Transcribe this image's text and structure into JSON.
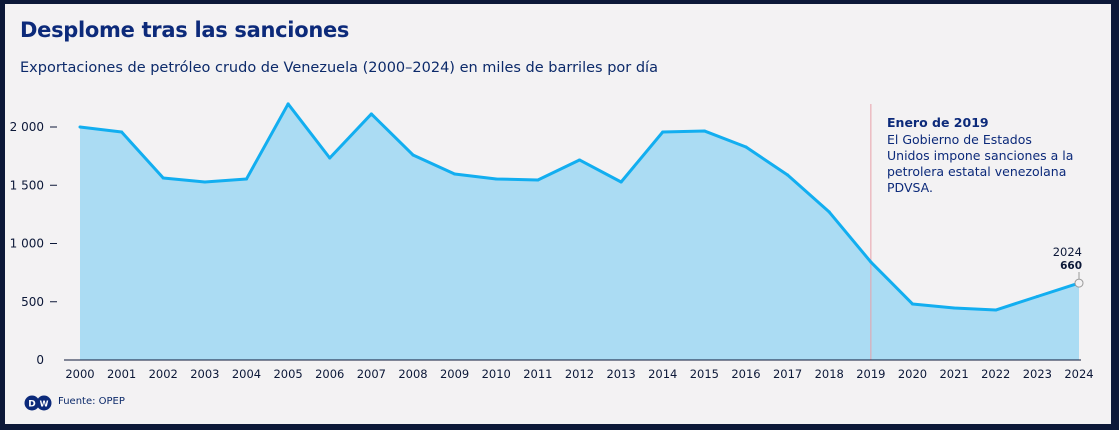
{
  "header": {
    "title": "Desplome tras las sanciones",
    "subtitle": "Exportaciones de petróleo crudo de Venezuela (2000–2024) en miles de barriles por día"
  },
  "footer": {
    "source": "Fuente: OPEP",
    "logo": "DW"
  },
  "chart_data": {
    "type": "area",
    "title": "Desplome tras las sanciones",
    "ylabel": "miles de barriles por día",
    "ylim": [
      0,
      2200
    ],
    "yticks": [
      0,
      500,
      1000,
      1500,
      2000
    ],
    "ytick_labels": [
      "0",
      "500",
      "1 000",
      "1 500",
      "2 000"
    ],
    "x": [
      2000,
      2001,
      2002,
      2003,
      2004,
      2005,
      2006,
      2007,
      2008,
      2009,
      2010,
      2011,
      2012,
      2013,
      2014,
      2015,
      2016,
      2017,
      2018,
      2019,
      2020,
      2021,
      2022,
      2023,
      2024
    ],
    "values": [
      2000,
      1957,
      1562,
      1528,
      1554,
      2198,
      1734,
      2112,
      1760,
      1597,
      1554,
      1545,
      1717,
      1528,
      1957,
      1966,
      1828,
      1588,
      1270,
      841,
      481,
      446,
      429,
      545,
      660
    ],
    "colors": {
      "line": "#12aef0",
      "fill": "#abdcf3",
      "annotation_line": "#e8a0a8"
    },
    "annotation": {
      "x": 2019,
      "title": "Enero de 2019",
      "text": [
        "El Gobierno de Estados",
        "Unidos impone sanciones a la",
        "petrolera estatal venezolana",
        "PDVSA."
      ]
    },
    "end_label": {
      "year": "2024",
      "value": "660"
    }
  }
}
